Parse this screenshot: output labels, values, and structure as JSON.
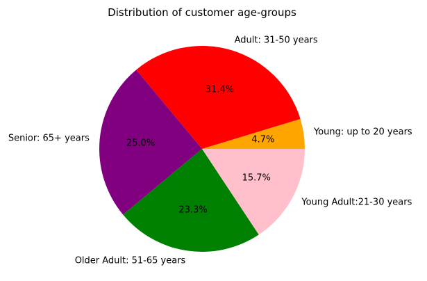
{
  "chart_data": {
    "type": "pie",
    "title": "Distribution of customer age-groups",
    "start_angle_deg": 0,
    "direction": "counterclockwise",
    "slices": [
      {
        "label": "Young: up to 20 years",
        "value": 4.7,
        "pct_label": "4.7%",
        "color": "#ffa500"
      },
      {
        "label": "Adult: 31-50 years",
        "value": 31.4,
        "pct_label": "31.4%",
        "color": "#ff0000"
      },
      {
        "label": "Senior: 65+ years",
        "value": 25.0,
        "pct_label": "25.0%",
        "color": "#800080"
      },
      {
        "label": "Older Adult: 51-65 years",
        "value": 23.3,
        "pct_label": "23.3%",
        "color": "#008000"
      },
      {
        "label": "Young Adult:21-30 years",
        "value": 15.7,
        "pct_label": "15.7%",
        "color": "#ffc0cb"
      }
    ]
  }
}
